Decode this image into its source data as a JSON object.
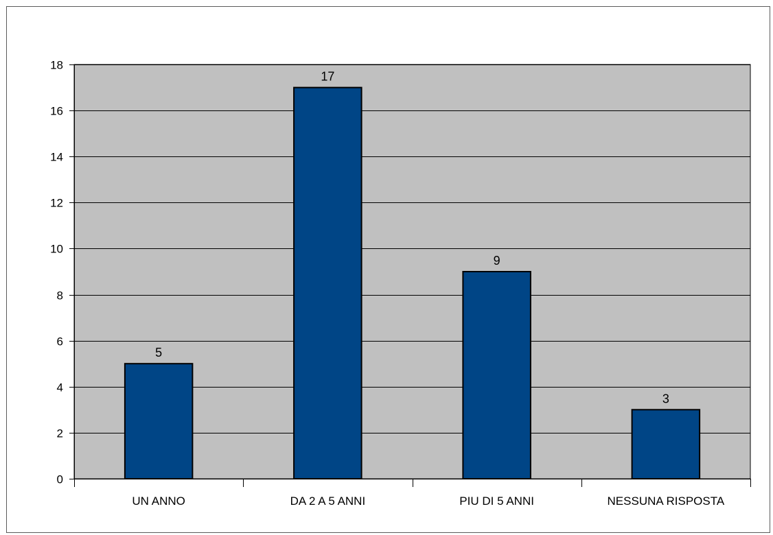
{
  "chart_data": {
    "type": "bar",
    "title": "",
    "xlabel": "",
    "ylabel": "",
    "categories": [
      "UN ANNO",
      "DA 2 A 5 ANNI",
      "PIU DI 5 ANNI",
      "NESSUNA RISPOSTA"
    ],
    "values": [
      5,
      17,
      9,
      3
    ],
    "ylim": [
      0,
      18
    ],
    "ytick_step": 2,
    "y_ticks": [
      "0",
      "2",
      "4",
      "6",
      "8",
      "10",
      "12",
      "14",
      "16",
      "18"
    ],
    "grid": true,
    "legend": "none",
    "data_labels": true
  },
  "colors": {
    "plot_background": "#c0c0c0",
    "bar_fill": "#004586",
    "bar_stroke": "#000000",
    "gridline": "#000000"
  }
}
